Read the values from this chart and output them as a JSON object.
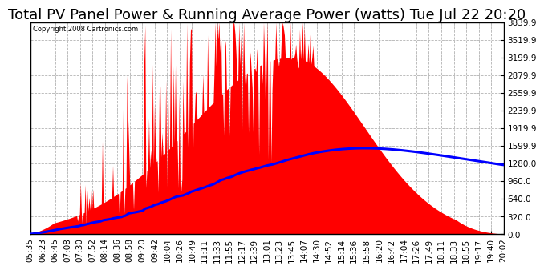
{
  "title": "Total PV Panel Power & Running Average Power (watts) Tue Jul 22 20:20",
  "copyright": "Copyright 2008 Cartronics.com",
  "yticks": [
    0.0,
    320.0,
    640.0,
    960.0,
    1280.0,
    1599.9,
    1919.9,
    2239.9,
    2559.9,
    2879.9,
    3199.9,
    3519.9,
    3839.9
  ],
  "ymax": 3839.9,
  "ymin": 0.0,
  "background_color": "#ffffff",
  "plot_bg_color": "#ffffff",
  "grid_color": "#aaaaaa",
  "fill_color": "#ff0000",
  "line_color": "#0000ff",
  "title_fontsize": 13,
  "tick_fontsize": 7.5,
  "xtick_labels": [
    "05:35",
    "06:23",
    "06:45",
    "07:08",
    "07:30",
    "07:52",
    "08:14",
    "08:36",
    "08:58",
    "09:20",
    "09:42",
    "10:04",
    "10:26",
    "10:49",
    "11:11",
    "11:33",
    "11:55",
    "12:17",
    "12:39",
    "13:01",
    "13:23",
    "13:45",
    "14:07",
    "14:30",
    "14:52",
    "15:14",
    "15:36",
    "15:58",
    "16:20",
    "16:42",
    "17:04",
    "17:26",
    "17:49",
    "18:11",
    "18:33",
    "18:55",
    "19:17",
    "19:40",
    "20:02"
  ]
}
